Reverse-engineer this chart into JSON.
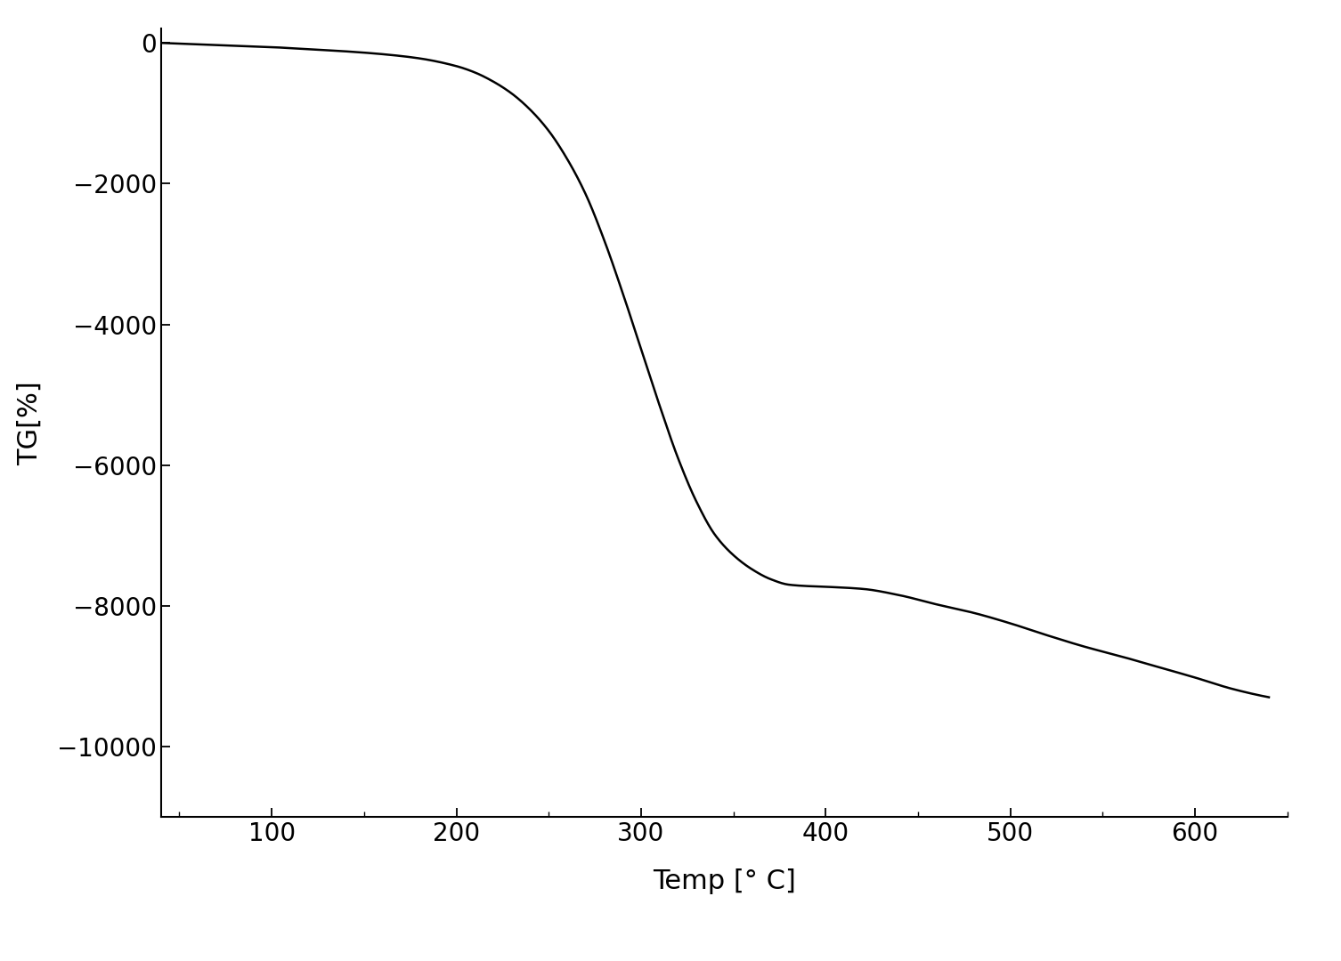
{
  "title": "",
  "xlabel": "Temp [° C]",
  "ylabel": "TG[%]",
  "xlim": [
    40,
    650
  ],
  "ylim": [
    -11000,
    200
  ],
  "xticks": [
    100,
    200,
    300,
    400,
    500,
    600
  ],
  "yticks": [
    0,
    -2000,
    -4000,
    -6000,
    -8000,
    -10000
  ],
  "line_color": "#000000",
  "background_color": "#ffffff",
  "line_width": 1.8,
  "xlabel_fontsize": 22,
  "ylabel_fontsize": 22,
  "tick_fontsize": 20,
  "curve_points_x": [
    40,
    60,
    80,
    100,
    120,
    140,
    160,
    180,
    200,
    210,
    220,
    230,
    240,
    250,
    260,
    270,
    280,
    290,
    300,
    310,
    320,
    330,
    340,
    350,
    360,
    370,
    380,
    390,
    400,
    420,
    440,
    460,
    480,
    500,
    520,
    540,
    560,
    580,
    600,
    620,
    640
  ],
  "curve_points_y": [
    0,
    -20,
    -40,
    -60,
    -90,
    -120,
    -160,
    -220,
    -330,
    -420,
    -550,
    -720,
    -950,
    -1250,
    -1650,
    -2150,
    -2800,
    -3550,
    -4350,
    -5150,
    -5900,
    -6520,
    -6990,
    -7280,
    -7480,
    -7620,
    -7700,
    -7720,
    -7730,
    -7760,
    -7850,
    -7980,
    -8100,
    -8250,
    -8420,
    -8580,
    -8720,
    -8870,
    -9020,
    -9180,
    -9300
  ]
}
